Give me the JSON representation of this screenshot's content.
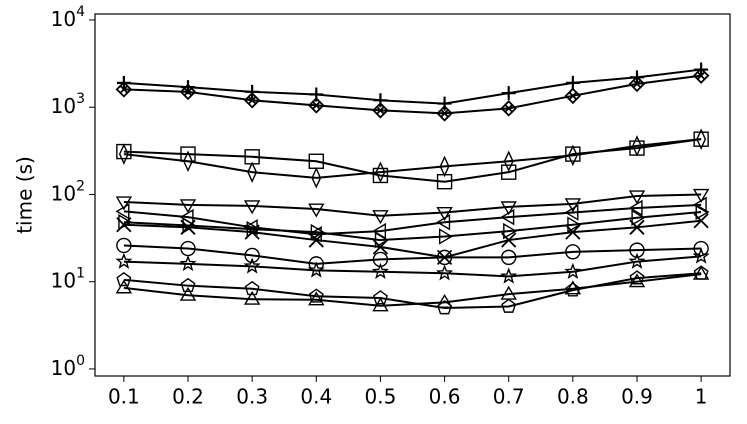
{
  "chart_data": {
    "type": "line",
    "ylabel": "time (s)",
    "log_y": true,
    "color": "#000000",
    "x": [
      0.1,
      0.2,
      0.3,
      0.4,
      0.5,
      0.6,
      0.7,
      0.8,
      0.9,
      1
    ],
    "xlim": [
      0.055,
      1.045
    ],
    "xticks": [
      0.1,
      0.2,
      0.3,
      0.4,
      0.5,
      0.6,
      0.7,
      0.8,
      0.9,
      1
    ],
    "ylim": [
      0.83,
      11700
    ],
    "yticks": [
      {
        "value": 1,
        "label": "10^0"
      },
      {
        "value": 10,
        "label": "10^1"
      },
      {
        "value": 100,
        "label": "10^2"
      },
      {
        "value": 1000,
        "label": "10^3"
      },
      {
        "value": 10000,
        "label": "10^4"
      }
    ],
    "series": [
      {
        "marker": "plus",
        "values": [
          1900,
          1700,
          1500,
          1400,
          1200,
          1100,
          1450,
          1900,
          2200,
          2700
        ]
      },
      {
        "marker": "crossed-diamond",
        "values": [
          1600,
          1500,
          1200,
          1050,
          920,
          850,
          970,
          1350,
          1850,
          2300
        ]
      },
      {
        "marker": "square",
        "values": [
          310,
          290,
          270,
          240,
          165,
          140,
          180,
          290,
          340,
          430
        ]
      },
      {
        "marker": "thin-diamond",
        "values": [
          290,
          240,
          180,
          155,
          180,
          210,
          240,
          280,
          360,
          430
        ]
      },
      {
        "marker": "triangle-down",
        "values": [
          82,
          76,
          74,
          68,
          57,
          62,
          72,
          78,
          96,
          100
        ]
      },
      {
        "marker": "triangle-left",
        "values": [
          64,
          55,
          42,
          35,
          38,
          48,
          55,
          62,
          70,
          76
        ]
      },
      {
        "marker": "x",
        "values": [
          45,
          42,
          37,
          30,
          25,
          19,
          30,
          37,
          42,
          50
        ]
      },
      {
        "marker": "triangle-right",
        "values": [
          48,
          44,
          40,
          37,
          30,
          33,
          38,
          45,
          54,
          63
        ]
      },
      {
        "marker": "circle",
        "values": [
          26,
          24,
          20,
          16,
          18,
          19,
          19,
          22,
          23,
          24
        ]
      },
      {
        "marker": "star",
        "values": [
          17,
          16,
          15,
          13.5,
          13,
          12.5,
          11.5,
          13,
          17,
          19.5
        ]
      },
      {
        "marker": "pentagon",
        "values": [
          10.5,
          9,
          8.3,
          6.8,
          6.5,
          5,
          5.2,
          8,
          11,
          12.5
        ]
      },
      {
        "marker": "triangle-up",
        "values": [
          8.5,
          7,
          6.3,
          6.2,
          5.3,
          5.8,
          7.2,
          8.3,
          10,
          12.2
        ]
      }
    ]
  }
}
